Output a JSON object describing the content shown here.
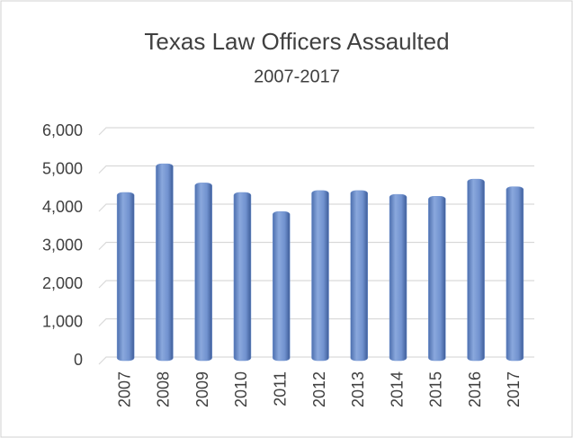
{
  "chart_data": {
    "type": "bar",
    "title": "Texas Law Officers Assaulted",
    "subtitle": "2007-2017",
    "categories": [
      "2007",
      "2008",
      "2009",
      "2010",
      "2011",
      "2012",
      "2013",
      "2014",
      "2015",
      "2016",
      "2017"
    ],
    "values": [
      4400,
      5150,
      4650,
      4400,
      3900,
      4450,
      4450,
      4350,
      4300,
      4750,
      4550
    ],
    "color": "#7496d2",
    "ylim": [
      0,
      6000
    ],
    "yticks": [
      0,
      {
        "value": 1000,
        "label": "1,000"
      },
      {
        "value": 2000,
        "label": "2,000"
      },
      {
        "value": 3000,
        "label": "3,000"
      },
      {
        "value": 4000,
        "label": "4,000"
      },
      {
        "value": 5000,
        "label": "5,000"
      },
      {
        "value": 6000,
        "label": "6,000"
      }
    ],
    "grid": true
  }
}
